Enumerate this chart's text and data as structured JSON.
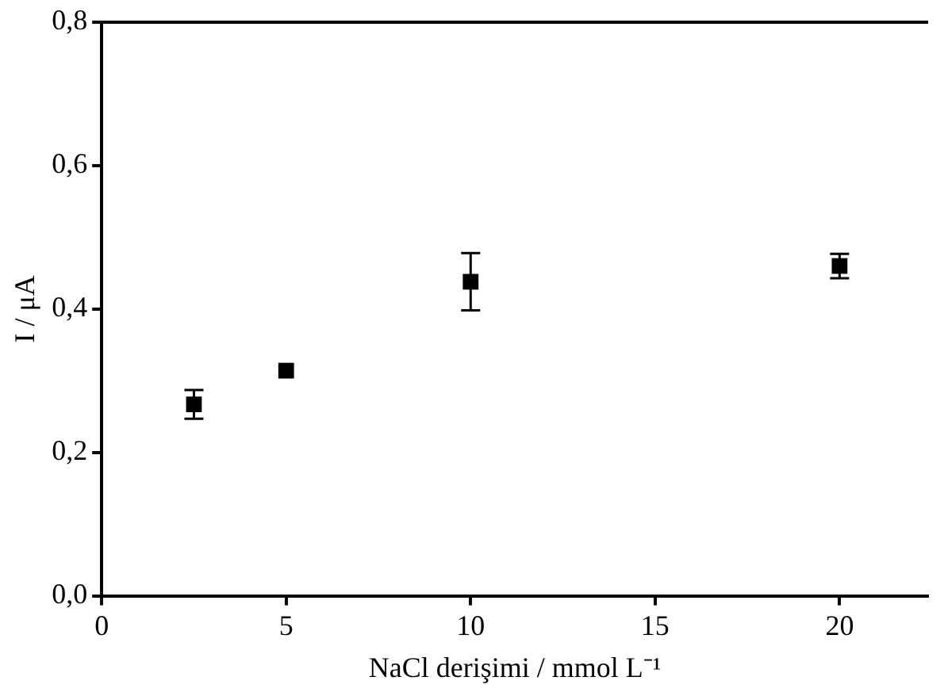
{
  "chart_data": {
    "type": "scatter",
    "xlabel": "NaCl derişimi / mmol L⁻¹",
    "ylabel": "I / μA",
    "x": [
      2.5,
      5,
      10,
      20
    ],
    "series": [
      {
        "color": "#000000",
        "values": [
          0.267,
          0.314,
          0.438,
          0.46
        ],
        "errors": [
          0.02,
          null,
          0.04,
          0.017
        ]
      }
    ],
    "xlim": [
      0,
      22.4
    ],
    "xticks": [
      0,
      5,
      10,
      15,
      20
    ],
    "ylim": [
      0,
      0.8
    ],
    "yticks": [
      {
        "value": 0,
        "label": "0,0"
      },
      {
        "value": 0.2,
        "label": "0,2"
      },
      {
        "value": 0.4,
        "label": "0,4"
      },
      {
        "value": 0.6,
        "label": "0,6"
      },
      {
        "value": 0.8,
        "label": "0,8"
      }
    ],
    "grid": false,
    "legend": false,
    "marker": "square"
  }
}
